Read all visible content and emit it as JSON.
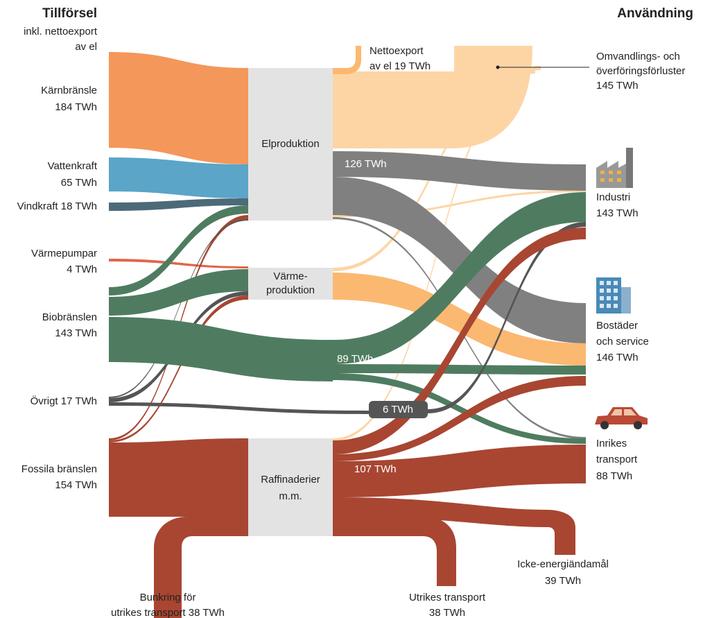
{
  "supply": {
    "title": "Tillförsel",
    "subtitle": [
      "inkl. nettoexport",
      "av el"
    ],
    "sources": [
      [
        "Kärnbränsle",
        "184 TWh"
      ],
      [
        "Vattenkraft",
        "65 TWh"
      ],
      [
        "Vindkraft 18 TWh"
      ],
      [
        "Värmepumpar",
        "4 TWh"
      ],
      [
        "Biobränslen",
        "143 TWh"
      ],
      [
        "Övrigt 17 TWh"
      ],
      [
        "Fossila bränslen",
        "154 TWh"
      ]
    ]
  },
  "processes": [
    [
      "Elproduktion"
    ],
    [
      "Värme-",
      "produktion"
    ],
    [
      "Raffinaderier",
      "m.m."
    ]
  ],
  "use": {
    "title": "Användning",
    "sinks": [
      [
        "Omvandlings- och",
        "överföringsförluster",
        "145 TWh"
      ],
      [
        "Industri",
        "143 TWh"
      ],
      [
        "Bostäder",
        "och service",
        "146 TWh"
      ],
      [
        "Inrikes",
        "transport",
        "88 TWh"
      ]
    ]
  },
  "exports": [
    [
      "Nettoexport",
      "av el 19 TWh"
    ],
    [
      "Bunkring för",
      "utrikes transport 38 TWh"
    ],
    [
      "Utrikes transport",
      "38 TWh"
    ],
    [
      "Icke-energiändamål",
      "39 TWh"
    ]
  ],
  "flow_labels": [
    "126 TWh",
    "89 TWh",
    "6 TWh",
    "107 TWh"
  ]
}
